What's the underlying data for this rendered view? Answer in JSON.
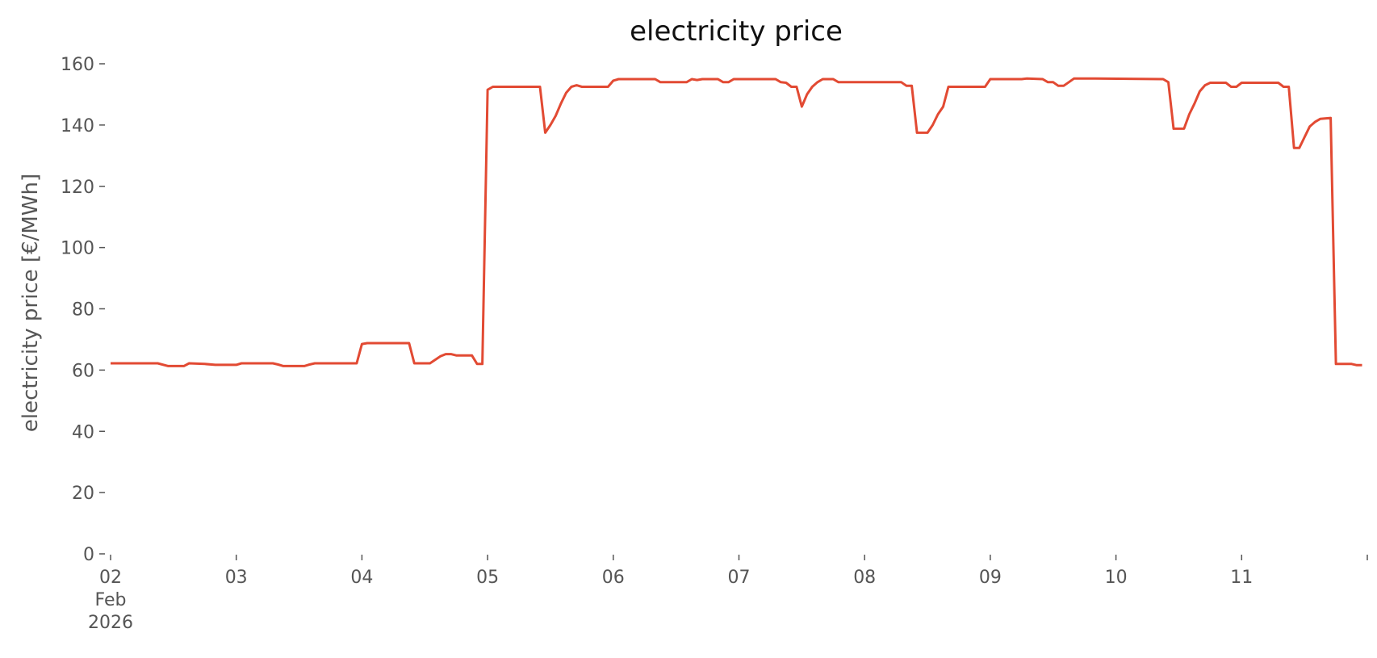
{
  "chart_data": {
    "type": "line",
    "title": "electricity price",
    "xlabel": "",
    "ylabel": "electricity price [€/MWh]",
    "xlim": [
      "2026-02-02T00:00",
      "2026-02-12T00:00"
    ],
    "ylim": [
      0,
      165
    ],
    "grid": false,
    "line_color": "#E24A33",
    "y_ticks": [
      0,
      20,
      40,
      60,
      80,
      100,
      120,
      140,
      160
    ],
    "x_ticks": [
      {
        "date": "2026-02-02",
        "label": [
          "02",
          "Feb",
          "2026"
        ]
      },
      {
        "date": "2026-02-03",
        "label": [
          "03"
        ]
      },
      {
        "date": "2026-02-04",
        "label": [
          "04"
        ]
      },
      {
        "date": "2026-02-05",
        "label": [
          "05"
        ]
      },
      {
        "date": "2026-02-06",
        "label": [
          "06"
        ]
      },
      {
        "date": "2026-02-07",
        "label": [
          "07"
        ]
      },
      {
        "date": "2026-02-08",
        "label": [
          "08"
        ]
      },
      {
        "date": "2026-02-09",
        "label": [
          "09"
        ]
      },
      {
        "date": "2026-02-10",
        "label": [
          "10"
        ]
      },
      {
        "date": "2026-02-11",
        "label": [
          "11"
        ]
      },
      {
        "date": "2026-02-12",
        "label": []
      }
    ],
    "series": [
      {
        "points": [
          [
            "2026-02-02T00:00",
            62.2
          ],
          [
            "2026-02-02T09:00",
            62.2
          ],
          [
            "2026-02-02T11:00",
            61.3
          ],
          [
            "2026-02-02T14:00",
            61.3
          ],
          [
            "2026-02-02T15:00",
            62.2
          ],
          [
            "2026-02-02T18:00",
            62
          ],
          [
            "2026-02-02T20:00",
            61.7
          ],
          [
            "2026-02-03T00:00",
            61.7
          ],
          [
            "2026-02-03T01:00",
            62.2
          ],
          [
            "2026-02-03T07:00",
            62.2
          ],
          [
            "2026-02-03T08:00",
            61.8
          ],
          [
            "2026-02-03T09:00",
            61.3
          ],
          [
            "2026-02-03T13:00",
            61.3
          ],
          [
            "2026-02-03T14:00",
            61.8
          ],
          [
            "2026-02-03T15:00",
            62.2
          ],
          [
            "2026-02-03T23:00",
            62.2
          ],
          [
            "2026-02-04T00:00",
            68.5
          ],
          [
            "2026-02-04T01:00",
            68.8
          ],
          [
            "2026-02-04T09:00",
            68.8
          ],
          [
            "2026-02-04T10:00",
            62.2
          ],
          [
            "2026-02-04T13:00",
            62.2
          ],
          [
            "2026-02-04T15:00",
            64.5
          ],
          [
            "2026-02-04T16:00",
            65.2
          ],
          [
            "2026-02-04T17:00",
            65.2
          ],
          [
            "2026-02-04T18:00",
            64.8
          ],
          [
            "2026-02-04T21:00",
            64.8
          ],
          [
            "2026-02-04T22:00",
            62
          ],
          [
            "2026-02-04T23:00",
            62
          ],
          [
            "2026-02-05T00:00",
            151.5
          ],
          [
            "2026-02-05T01:00",
            152.5
          ],
          [
            "2026-02-05T10:00",
            152.5
          ],
          [
            "2026-02-05T11:00",
            137.5
          ],
          [
            "2026-02-05T12:00",
            140
          ],
          [
            "2026-02-05T13:00",
            143
          ],
          [
            "2026-02-05T14:00",
            147
          ],
          [
            "2026-02-05T15:00",
            150.5
          ],
          [
            "2026-02-05T16:00",
            152.5
          ],
          [
            "2026-02-05T17:00",
            153
          ],
          [
            "2026-02-05T18:00",
            152.5
          ],
          [
            "2026-02-05T23:00",
            152.5
          ],
          [
            "2026-02-06T00:00",
            154.5
          ],
          [
            "2026-02-06T01:00",
            155
          ],
          [
            "2026-02-06T08:00",
            155
          ],
          [
            "2026-02-06T09:00",
            154
          ],
          [
            "2026-02-06T14:00",
            154
          ],
          [
            "2026-02-06T15:00",
            155
          ],
          [
            "2026-02-06T16:00",
            154.7
          ],
          [
            "2026-02-06T17:00",
            155
          ],
          [
            "2026-02-06T20:00",
            155
          ],
          [
            "2026-02-06T21:00",
            154
          ],
          [
            "2026-02-06T22:00",
            154
          ],
          [
            "2026-02-06T23:00",
            155
          ],
          [
            "2026-02-07T07:00",
            155
          ],
          [
            "2026-02-07T08:00",
            154
          ],
          [
            "2026-02-07T09:00",
            153.8
          ],
          [
            "2026-02-07T10:00",
            152.5
          ],
          [
            "2026-02-07T11:00",
            152.5
          ],
          [
            "2026-02-07T12:00",
            146
          ],
          [
            "2026-02-07T13:00",
            150
          ],
          [
            "2026-02-07T14:00",
            152.5
          ],
          [
            "2026-02-07T15:00",
            154
          ],
          [
            "2026-02-07T16:00",
            155
          ],
          [
            "2026-02-07T18:00",
            155
          ],
          [
            "2026-02-07T19:00",
            154
          ],
          [
            "2026-02-08T07:00",
            154
          ],
          [
            "2026-02-08T08:00",
            152.8
          ],
          [
            "2026-02-08T09:00",
            152.8
          ],
          [
            "2026-02-08T10:00",
            137.5
          ],
          [
            "2026-02-08T12:00",
            137.5
          ],
          [
            "2026-02-08T13:00",
            140
          ],
          [
            "2026-02-08T14:00",
            143.5
          ],
          [
            "2026-02-08T15:00",
            146
          ],
          [
            "2026-02-08T16:00",
            152.5
          ],
          [
            "2026-02-08T23:00",
            152.5
          ],
          [
            "2026-02-09T00:00",
            155
          ],
          [
            "2026-02-09T06:00",
            155
          ],
          [
            "2026-02-09T07:00",
            155.2
          ],
          [
            "2026-02-09T10:00",
            155
          ],
          [
            "2026-02-09T11:00",
            154
          ],
          [
            "2026-02-09T12:00",
            154
          ],
          [
            "2026-02-09T13:00",
            152.8
          ],
          [
            "2026-02-09T14:00",
            152.8
          ],
          [
            "2026-02-09T15:00",
            154
          ],
          [
            "2026-02-09T16:00",
            155.2
          ],
          [
            "2026-02-09T20:00",
            155.2
          ],
          [
            "2026-02-10T09:00",
            155
          ],
          [
            "2026-02-10T10:00",
            154
          ],
          [
            "2026-02-10T11:00",
            138.8
          ],
          [
            "2026-02-10T13:00",
            138.8
          ],
          [
            "2026-02-10T14:00",
            143.5
          ],
          [
            "2026-02-10T15:00",
            147
          ],
          [
            "2026-02-10T16:00",
            151
          ],
          [
            "2026-02-10T17:00",
            153
          ],
          [
            "2026-02-10T18:00",
            153.8
          ],
          [
            "2026-02-10T21:00",
            153.8
          ],
          [
            "2026-02-10T22:00",
            152.5
          ],
          [
            "2026-02-10T23:00",
            152.5
          ],
          [
            "2026-02-11T00:00",
            153.8
          ],
          [
            "2026-02-11T07:00",
            153.8
          ],
          [
            "2026-02-11T08:00",
            152.5
          ],
          [
            "2026-02-11T09:00",
            152.5
          ],
          [
            "2026-02-11T10:00",
            132.5
          ],
          [
            "2026-02-11T11:00",
            132.5
          ],
          [
            "2026-02-11T12:00",
            136
          ],
          [
            "2026-02-11T13:00",
            139.5
          ],
          [
            "2026-02-11T14:00",
            141
          ],
          [
            "2026-02-11T15:00",
            142
          ],
          [
            "2026-02-11T17:00",
            142.3
          ],
          [
            "2026-02-11T18:00",
            62
          ],
          [
            "2026-02-11T21:00",
            62
          ],
          [
            "2026-02-11T22:00",
            61.6
          ],
          [
            "2026-02-11T23:00",
            61.6
          ]
        ]
      }
    ]
  }
}
